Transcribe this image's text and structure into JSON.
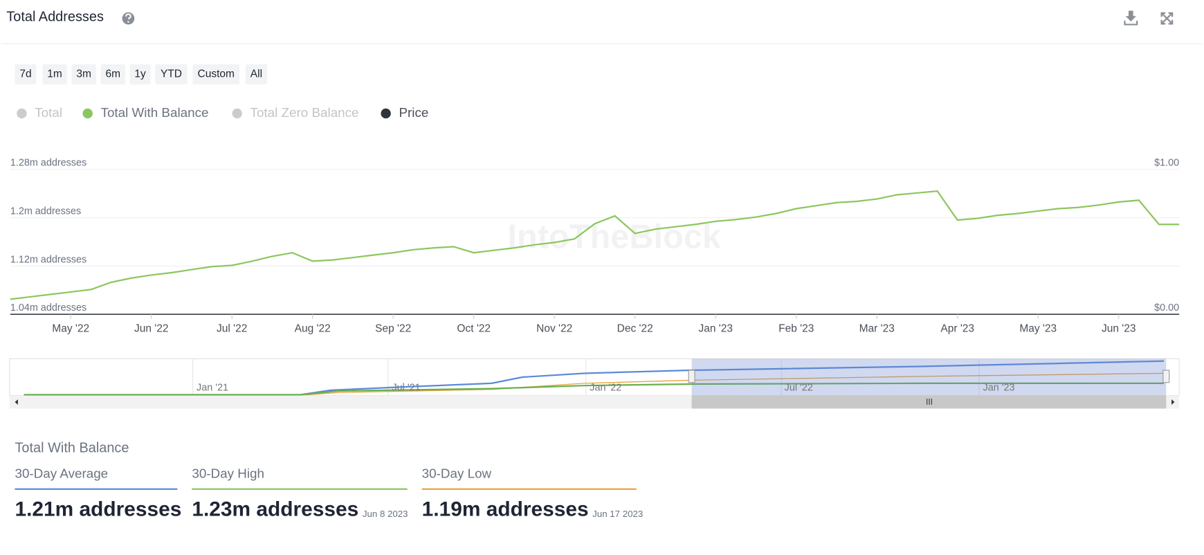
{
  "header": {
    "title": "Total Addresses"
  },
  "range_buttons": [
    "7d",
    "1m",
    "3m",
    "6m",
    "1y",
    "YTD",
    "Custom",
    "All"
  ],
  "chart_data": {
    "type": "line",
    "watermark": "IntoTheBlock",
    "legend_items": [
      {
        "name": "Total",
        "color": "#cccccc",
        "visible": false
      },
      {
        "name": "Total With Balance",
        "color": "#8cc65e",
        "visible": true
      },
      {
        "name": "Total Zero Balance",
        "color": "#cccccc",
        "visible": false
      },
      {
        "name": "Price",
        "color": "#2f343b",
        "visible": true
      }
    ],
    "categories": [
      null,
      null,
      null,
      "May '22",
      null,
      null,
      null,
      "Jun '22",
      null,
      null,
      null,
      "Jul '22",
      null,
      null,
      null,
      "Aug '22",
      null,
      null,
      null,
      "Sep '22",
      null,
      null,
      null,
      "Oct '22",
      null,
      null,
      null,
      "Nov '22",
      null,
      null,
      null,
      "Dec '22",
      null,
      null,
      null,
      "Jan '23",
      null,
      null,
      null,
      "Feb '23",
      null,
      null,
      null,
      "Mar '23",
      null,
      null,
      null,
      "Apr '23",
      null,
      null,
      null,
      "May '23",
      null,
      null,
      null,
      "Jun '23",
      null,
      null,
      null
    ],
    "series": [
      {
        "name": "Total With Balance",
        "color": "#8cc65e",
        "values": [
          1065000,
          1069000,
          1073000,
          1077000,
          1081000,
          1093000,
          1100000,
          1105000,
          1109000,
          1114000,
          1119000,
          1121000,
          1128000,
          1136000,
          1142000,
          1128000,
          1130000,
          1134000,
          1138000,
          1142000,
          1147000,
          1150000,
          1152000,
          1142000,
          1146000,
          1150000,
          1155000,
          1159000,
          1165000,
          1190000,
          1203000,
          1174000,
          1181000,
          1185000,
          1189000,
          1194000,
          1197000,
          1201000,
          1207000,
          1215000,
          1220000,
          1225000,
          1227000,
          1231000,
          1238000,
          1241000,
          1244000,
          1196000,
          1199000,
          1204000,
          1207000,
          1211000,
          1215000,
          1217000,
          1221000,
          1226000,
          1229000,
          1189000,
          1189000
        ]
      }
    ],
    "ylim": [
      1040000,
      1280000
    ],
    "yticks": [
      {
        "value": 1040000,
        "label": "1.04m addresses"
      },
      {
        "value": 1120000,
        "label": "1.12m addresses"
      },
      {
        "value": 1200000,
        "label": "1.2m addresses"
      },
      {
        "value": 1280000,
        "label": "1.28m addresses"
      }
    ],
    "y2lim": [
      0,
      1
    ],
    "y2ticks": [
      {
        "value": 0,
        "label": "$0.00"
      },
      {
        "value": 1,
        "label": "$1.00"
      }
    ],
    "grid": true
  },
  "navigator": {
    "labels": [
      "Jan '21",
      "Jul '21",
      "Jan '22",
      "Jul '22",
      "Jan '23"
    ]
  },
  "summary": {
    "title": "Total With Balance",
    "items": [
      {
        "label": "30-Day Average",
        "value": "1.21m addresses",
        "color": "#5b8ad8"
      },
      {
        "label": "30-Day High",
        "value": "1.23m addresses",
        "date": "Jun 8 2023",
        "color": "#8cc65e"
      },
      {
        "label": "30-Day Low",
        "value": "1.19m addresses",
        "date": "Jun 17 2023",
        "color": "#e8a43c"
      }
    ]
  }
}
